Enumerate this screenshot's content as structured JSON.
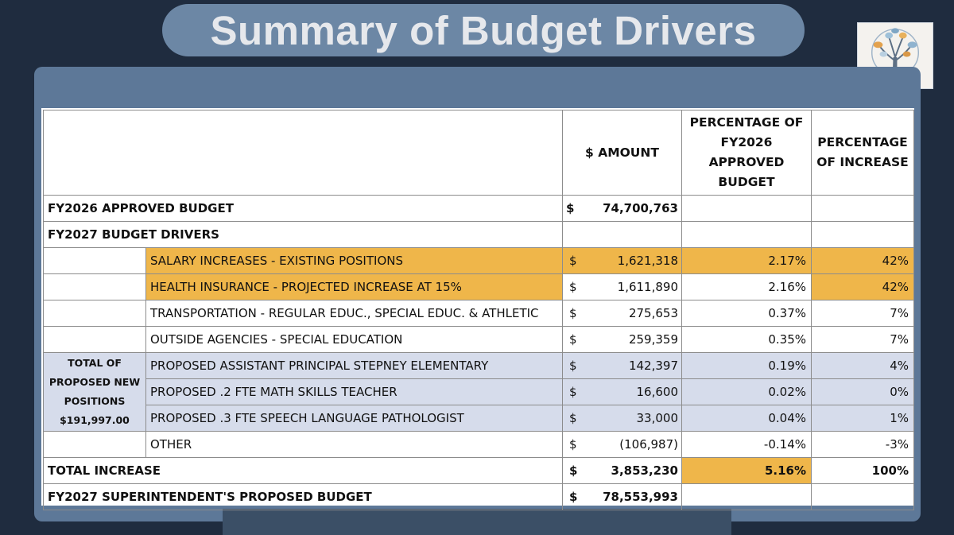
{
  "title": "Summary of Budget Drivers",
  "headers": {
    "amount": "$ AMOUNT",
    "pct_budget": "PERCENTAGE OF FY2026 APPROVED BUDGET",
    "pct_increase": "PERCENTAGE OF INCREASE"
  },
  "approved": {
    "label": "FY2026 APPROVED BUDGET",
    "currency": "$",
    "amount": "74,700,763"
  },
  "drivers_label": "FY2027 BUDGET DRIVERS",
  "group_label": "TOTAL OF PROPOSED NEW POSITIONS $191,997.00",
  "rows": [
    {
      "label": "SALARY INCREASES - EXISTING POSITIONS",
      "currency": "$",
      "amount": "1,621,318",
      "pct_budget": "2.17%",
      "pct_increase": "42%"
    },
    {
      "label": "HEALTH INSURANCE - PROJECTED INCREASE AT 15%",
      "currency": "$",
      "amount": "1,611,890",
      "pct_budget": "2.16%",
      "pct_increase": "42%"
    },
    {
      "label": "TRANSPORTATION - REGULAR EDUC., SPECIAL EDUC. & ATHLETIC",
      "currency": "$",
      "amount": "275,653",
      "pct_budget": "0.37%",
      "pct_increase": "7%"
    },
    {
      "label": "OUTSIDE AGENCIES - SPECIAL EDUCATION",
      "currency": "$",
      "amount": "259,359",
      "pct_budget": "0.35%",
      "pct_increase": "7%"
    },
    {
      "label": "PROPOSED ASSISTANT PRINCIPAL STEPNEY ELEMENTARY",
      "currency": "$",
      "amount": "142,397",
      "pct_budget": "0.19%",
      "pct_increase": "4%"
    },
    {
      "label": "PROPOSED .2 FTE MATH SKILLS TEACHER",
      "currency": "$",
      "amount": "16,600",
      "pct_budget": "0.02%",
      "pct_increase": "0%"
    },
    {
      "label": "PROPOSED .3 FTE SPEECH LANGUAGE PATHOLOGIST",
      "currency": "$",
      "amount": "33,000",
      "pct_budget": "0.04%",
      "pct_increase": "1%"
    },
    {
      "label": "OTHER",
      "currency": "$",
      "amount": "(106,987)",
      "pct_budget": "-0.14%",
      "pct_increase": "-3%"
    }
  ],
  "total": {
    "label": "TOTAL INCREASE",
    "currency": "$",
    "amount": "3,853,230",
    "pct_budget": "5.16%",
    "pct_increase": "100%"
  },
  "proposed": {
    "label": "FY2027 SUPERINTENDENT'S PROPOSED BUDGET",
    "currency": "$",
    "amount": "78,553,993"
  },
  "colors": {
    "highlight": "#efb64a",
    "group": "#d6dceb",
    "frame": "#5d7898",
    "title_pill": "#6c87a5"
  },
  "logo_icon": "tree-logo-icon"
}
